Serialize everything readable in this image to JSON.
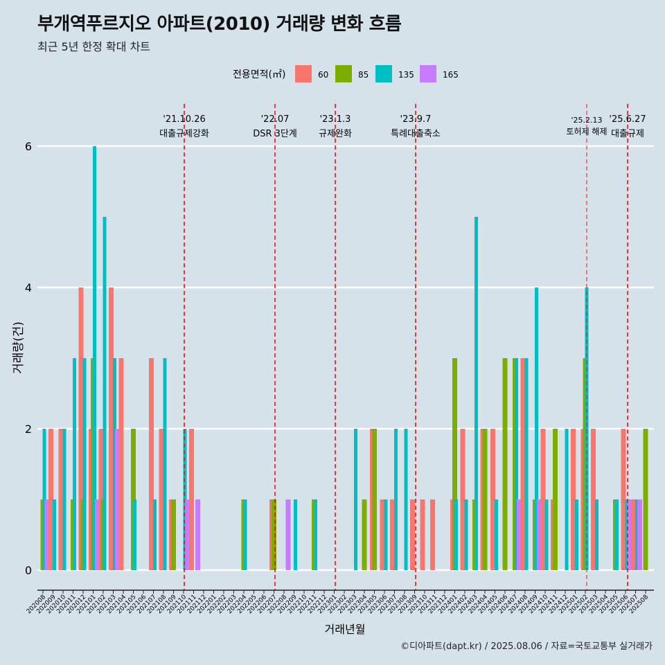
{
  "header": {
    "title": "부개역푸르지오 아파트(2010) 거래량 변화 흐름",
    "subtitle": "최근 5년 한정 확대 차트"
  },
  "footer": {
    "credit": "©디아파트(dapt.kr) / 2025.08.06 / 자료=국토교통부 실거래가"
  },
  "chart_data": {
    "type": "bar",
    "title": "부개역푸르지오 아파트(2010) 거래량 변화 흐름",
    "xlabel": "거래년월",
    "ylabel": "거래량(건)",
    "ylim": [
      -0.5,
      6.6
    ],
    "yticks": [
      0,
      2,
      4,
      6
    ],
    "legend": {
      "title": "전용면적(㎡)",
      "position": "top"
    },
    "series": [
      {
        "name": "60",
        "color": "#f8766d"
      },
      {
        "name": "85",
        "color": "#7cae00"
      },
      {
        "name": "135",
        "color": "#00bfc4"
      },
      {
        "name": "165",
        "color": "#c77cff"
      }
    ],
    "months": [
      "202008",
      "202009",
      "202010",
      "202011",
      "202012",
      "202101",
      "202102",
      "202103",
      "202104",
      "202105",
      "202106",
      "202107",
      "202108",
      "202109",
      "202110",
      "202111",
      "202112",
      "202201",
      "202202",
      "202203",
      "202204",
      "202205",
      "202206",
      "202207",
      "202208",
      "202209",
      "202210",
      "202211",
      "202212",
      "202301",
      "202302",
      "202303",
      "202304",
      "202305",
      "202306",
      "202307",
      "202308",
      "202309",
      "202310",
      "202311",
      "202312",
      "202401",
      "202402",
      "202403",
      "202404",
      "202405",
      "202406",
      "202407",
      "202408",
      "202409",
      "202410",
      "202411",
      "202412",
      "202501",
      "202502",
      "202503",
      "202504",
      "202505",
      "202506",
      "202507",
      "202508"
    ],
    "bars": [
      {
        "month": "202008",
        "values": [
          0,
          1,
          2,
          1
        ]
      },
      {
        "month": "202009",
        "values": [
          2,
          0,
          1,
          0
        ]
      },
      {
        "month": "202010",
        "values": [
          2,
          0,
          2,
          0
        ]
      },
      {
        "month": "202011",
        "values": [
          0,
          1,
          3,
          0
        ]
      },
      {
        "month": "202012",
        "values": [
          4,
          1,
          3,
          0
        ]
      },
      {
        "month": "202101",
        "values": [
          2,
          3,
          6,
          1
        ]
      },
      {
        "month": "202102",
        "values": [
          2,
          1,
          5,
          0
        ]
      },
      {
        "month": "202103",
        "values": [
          4,
          0,
          3,
          2
        ]
      },
      {
        "month": "202104",
        "values": [
          3,
          0,
          0,
          0
        ]
      },
      {
        "month": "202105",
        "values": [
          0,
          2,
          1,
          0
        ]
      },
      {
        "month": "202106",
        "values": [
          0,
          0,
          0,
          0
        ]
      },
      {
        "month": "202107",
        "values": [
          3,
          0,
          1,
          0
        ]
      },
      {
        "month": "202108",
        "values": [
          2,
          0,
          3,
          0
        ]
      },
      {
        "month": "202109",
        "values": [
          1,
          1,
          0,
          0
        ]
      },
      {
        "month": "202110",
        "values": [
          0,
          0,
          2,
          1
        ]
      },
      {
        "month": "202111",
        "values": [
          2,
          0,
          0,
          1
        ]
      },
      {
        "month": "202112",
        "values": [
          0,
          0,
          0,
          0
        ]
      },
      {
        "month": "202201",
        "values": [
          0,
          0,
          0,
          0
        ]
      },
      {
        "month": "202202",
        "values": [
          0,
          0,
          0,
          0
        ]
      },
      {
        "month": "202203",
        "values": [
          0,
          0,
          0,
          0
        ]
      },
      {
        "month": "202204",
        "values": [
          0,
          1,
          1,
          0
        ]
      },
      {
        "month": "202205",
        "values": [
          0,
          0,
          0,
          0
        ]
      },
      {
        "month": "202206",
        "values": [
          0,
          0,
          0,
          0
        ]
      },
      {
        "month": "202207",
        "values": [
          1,
          1,
          0,
          0
        ]
      },
      {
        "month": "202208",
        "values": [
          0,
          0,
          0,
          1
        ]
      },
      {
        "month": "202209",
        "values": [
          0,
          0,
          1,
          0
        ]
      },
      {
        "month": "202210",
        "values": [
          0,
          0,
          0,
          0
        ]
      },
      {
        "month": "202211",
        "values": [
          0,
          1,
          1,
          0
        ]
      },
      {
        "month": "202212",
        "values": [
          0,
          0,
          0,
          0
        ]
      },
      {
        "month": "202301",
        "values": [
          0,
          0,
          0,
          0
        ]
      },
      {
        "month": "202302",
        "values": [
          0,
          0,
          0,
          0
        ]
      },
      {
        "month": "202303",
        "values": [
          0,
          0,
          2,
          0
        ]
      },
      {
        "month": "202304",
        "values": [
          0,
          1,
          0,
          0
        ]
      },
      {
        "month": "202305",
        "values": [
          2,
          2,
          0,
          0
        ]
      },
      {
        "month": "202306",
        "values": [
          1,
          0,
          1,
          0
        ]
      },
      {
        "month": "202307",
        "values": [
          1,
          0,
          2,
          0
        ]
      },
      {
        "month": "202308",
        "values": [
          0,
          0,
          2,
          0
        ]
      },
      {
        "month": "202309",
        "values": [
          1,
          0,
          0,
          0
        ]
      },
      {
        "month": "202310",
        "values": [
          1,
          0,
          0,
          0
        ]
      },
      {
        "month": "202311",
        "values": [
          1,
          0,
          0,
          0
        ]
      },
      {
        "month": "202312",
        "values": [
          0,
          0,
          0,
          0
        ]
      },
      {
        "month": "202401",
        "values": [
          1,
          3,
          1,
          0
        ]
      },
      {
        "month": "202402",
        "values": [
          2,
          0,
          1,
          0
        ]
      },
      {
        "month": "202403",
        "values": [
          0,
          1,
          5,
          0
        ]
      },
      {
        "month": "202404",
        "values": [
          2,
          2,
          0,
          0
        ]
      },
      {
        "month": "202405",
        "values": [
          2,
          0,
          1,
          0
        ]
      },
      {
        "month": "202406",
        "values": [
          0,
          3,
          0,
          0
        ]
      },
      {
        "month": "202407",
        "values": [
          0,
          3,
          3,
          1
        ]
      },
      {
        "month": "202408",
        "values": [
          3,
          0,
          3,
          0
        ]
      },
      {
        "month": "202409",
        "values": [
          0,
          1,
          4,
          1
        ]
      },
      {
        "month": "202410",
        "values": [
          2,
          0,
          1,
          0
        ]
      },
      {
        "month": "202411",
        "values": [
          1,
          2,
          0,
          0
        ]
      },
      {
        "month": "202412",
        "values": [
          0,
          0,
          2,
          0
        ]
      },
      {
        "month": "202501",
        "values": [
          2,
          0,
          1,
          0
        ]
      },
      {
        "month": "202502",
        "values": [
          2,
          3,
          4,
          0
        ]
      },
      {
        "month": "202503",
        "values": [
          2,
          0,
          1,
          0
        ]
      },
      {
        "month": "202504",
        "values": [
          0,
          0,
          0,
          0
        ]
      },
      {
        "month": "202505",
        "values": [
          0,
          1,
          1,
          0
        ]
      },
      {
        "month": "202506",
        "values": [
          2,
          0,
          1,
          1
        ]
      },
      {
        "month": "202507",
        "values": [
          1,
          0,
          1,
          1
        ]
      },
      {
        "month": "202508",
        "values": [
          0,
          2,
          0,
          0
        ]
      }
    ],
    "annotations": [
      {
        "month": "202110",
        "date": "'21.10.26",
        "label": "대출규제강화"
      },
      {
        "month": "202207",
        "date": "'22.07",
        "label": "DSR 3단계"
      },
      {
        "month": "202301",
        "date": "'23.1.3",
        "label": "규제완화"
      },
      {
        "month": "202309",
        "date": "'23.9.7",
        "label": "특례대출축소"
      },
      {
        "month": "202502",
        "date": "'25.2.13",
        "label": "토허제 해제"
      },
      {
        "month": "202506",
        "date": "'25.6.27",
        "label": "대출규제"
      }
    ]
  }
}
